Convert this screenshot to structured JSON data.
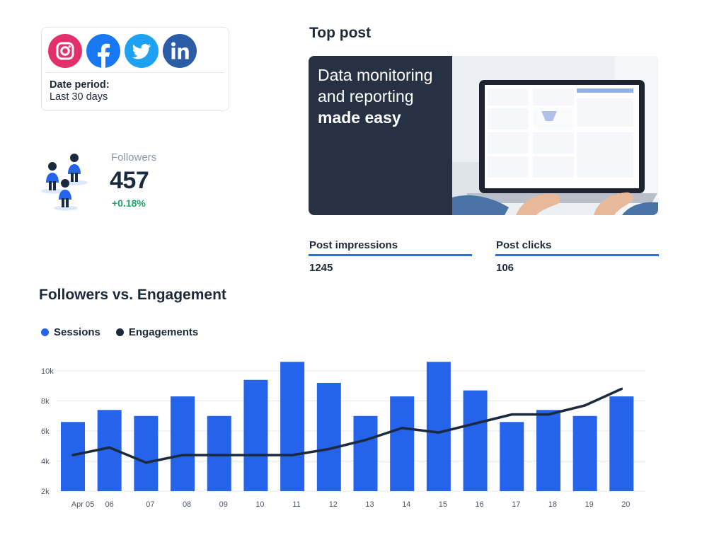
{
  "social": {
    "networks": [
      {
        "name": "instagram-icon",
        "color": "#e1306c"
      },
      {
        "name": "facebook-icon",
        "color": "#1877f2"
      },
      {
        "name": "twitter-icon",
        "color": "#1da1f2"
      },
      {
        "name": "linkedin-icon",
        "color": "#2a5ca8"
      }
    ],
    "date_label": "Date period:",
    "date_value": "Last 30 days"
  },
  "followers": {
    "label": "Followers",
    "value": "457",
    "change": "+0.18%"
  },
  "top_post": {
    "title": "Top post",
    "banner_line1": "Data monitoring",
    "banner_line2": "and reporting",
    "banner_line3": "made easy"
  },
  "metrics": [
    {
      "label": "Post impressions",
      "value": "1245"
    },
    {
      "label": "Post clicks",
      "value": "106"
    }
  ],
  "chart_title": "Followers vs. Engagement",
  "colors": {
    "sessions": "#2563eb",
    "engagements": "#1b2a3e",
    "positive": "#22a36b",
    "accent": "#2f6ce5"
  },
  "chart_data": {
    "type": "bar",
    "categories": [
      "Apr 05",
      "06",
      "07",
      "08",
      "09",
      "10",
      "11",
      "12",
      "13",
      "14",
      "15",
      "16",
      "17",
      "18",
      "19",
      "20"
    ],
    "series": [
      {
        "name": "Sessions",
        "type": "bar",
        "values": [
          6600,
          7400,
          7000,
          8300,
          7000,
          9400,
          10600,
          9200,
          7000,
          8300,
          10600,
          8700,
          6600,
          7400,
          7000,
          8300
        ]
      },
      {
        "name": "Engagements",
        "type": "line",
        "values": [
          4400,
          4900,
          3900,
          4400,
          4400,
          4400,
          4400,
          4800,
          5400,
          6200,
          5900,
          6500,
          7100,
          7100,
          7700,
          8800
        ]
      }
    ],
    "y_ticks": [
      "2k",
      "4k",
      "6k",
      "8k",
      "10k"
    ],
    "ylim": [
      2000,
      10000
    ],
    "legend_position": "top-left",
    "grid": true
  }
}
